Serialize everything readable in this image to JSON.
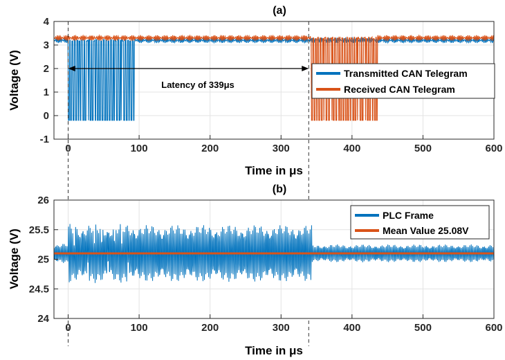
{
  "chart_data": [
    {
      "title": "(a)",
      "type": "line",
      "xlabel": "Time in μs",
      "ylabel": "Voltage (V)",
      "xlim": [
        -20,
        600
      ],
      "ylim": [
        -1,
        4
      ],
      "x_ticks": [
        "0",
        "100",
        "200",
        "300",
        "400",
        "500",
        "600"
      ],
      "y_ticks": [
        "-1",
        "0",
        "1",
        "2",
        "3",
        "4"
      ],
      "grid": true,
      "legend_position": "right, middle",
      "annotation": {
        "text": "Latency of 339μs",
        "from_x": 0,
        "to_x": 339,
        "y": 2
      },
      "markers": [
        0,
        339
      ],
      "series": [
        {
          "name": "Transmitted CAN Telegram",
          "color": "#0072BD",
          "idle_level": 3.2,
          "low_level": -0.2,
          "burst_range": [
            0,
            93
          ]
        },
        {
          "name": "Received CAN Telegram",
          "color": "#D95319",
          "idle_level": 3.3,
          "low_level": -0.2,
          "burst_range": [
            343,
            436
          ]
        }
      ]
    },
    {
      "title": "(b)",
      "type": "line",
      "xlabel": "Time in μs",
      "ylabel": "Voltage (V)",
      "xlim": [
        -20,
        600
      ],
      "ylim": [
        24,
        26
      ],
      "x_ticks": [
        "0",
        "100",
        "200",
        "300",
        "400",
        "500",
        "600"
      ],
      "y_ticks": [
        "24",
        "24.5",
        "25",
        "25.5",
        "26"
      ],
      "grid": true,
      "legend_position": "top-right",
      "markers": [
        0,
        339
      ],
      "series": [
        {
          "name": "PLC Frame",
          "color": "#0072BD",
          "center": 25.1,
          "segments": [
            {
              "range": [
                -20,
                0
              ],
              "amp": 0.17
            },
            {
              "range": [
                0,
                93
              ],
              "amp": 0.5
            },
            {
              "range": [
                93,
                343
              ],
              "amp": 0.48
            },
            {
              "range": [
                343,
                600
              ],
              "amp": 0.15
            }
          ]
        },
        {
          "name": "Mean Value 25.08V",
          "color": "#D95319",
          "value": 25.1
        }
      ]
    }
  ]
}
